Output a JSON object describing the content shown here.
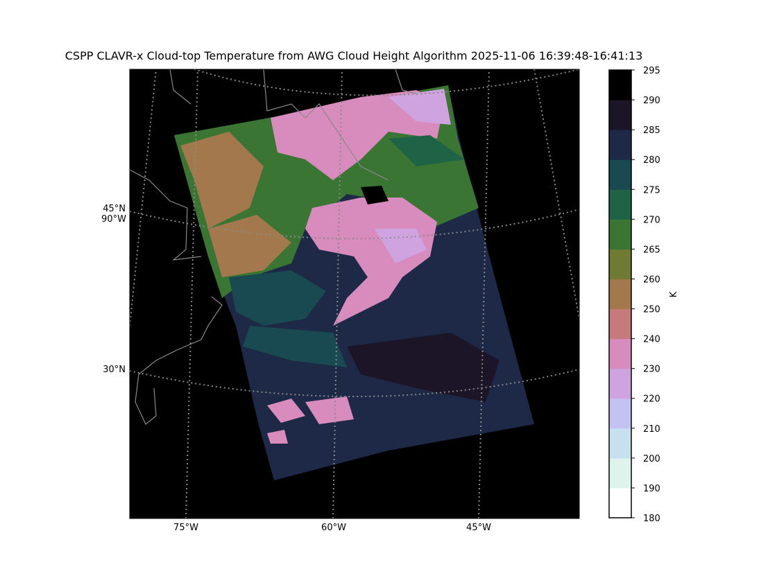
{
  "title": "CSPP CLAVR-x Cloud-top Temperature from AWG Cloud Height Algorithm 2025-11-06 16:39:48-16:41:13",
  "map": {
    "lon_labels": [
      "75°W",
      "60°W",
      "45°W"
    ],
    "lat_labels": [
      "45°N",
      "90°W",
      "30°N"
    ]
  },
  "colorbar": {
    "label": "K",
    "bounds": [
      180,
      190,
      200,
      210,
      220,
      230,
      240,
      250,
      260,
      265,
      270,
      275,
      280,
      285,
      290,
      295
    ],
    "colors": [
      "#ffffff",
      "#def3ec",
      "#c6e0f0",
      "#c4c2f2",
      "#cfa3e0",
      "#d88bbd",
      "#c67a7b",
      "#a3784c",
      "#6f7a32",
      "#3b7534",
      "#1f6346",
      "#1a4a51",
      "#1d2947",
      "#1c1427",
      "#000000"
    ]
  }
}
